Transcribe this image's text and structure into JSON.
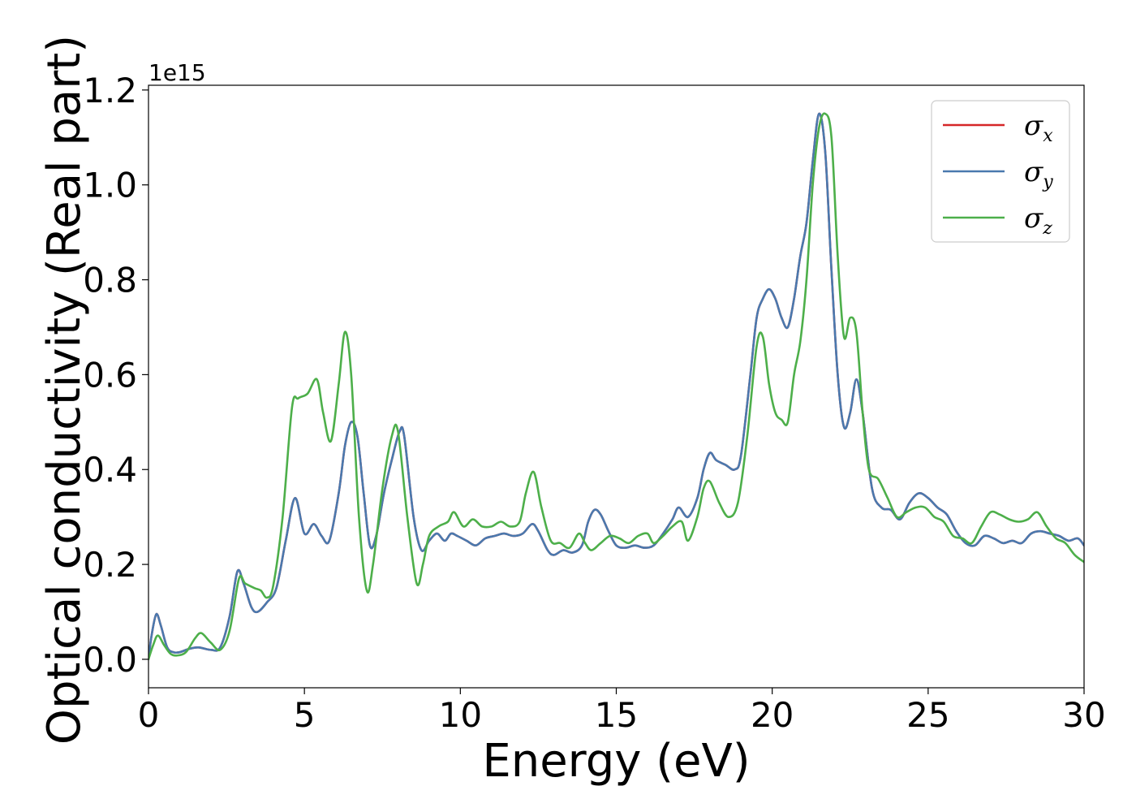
{
  "chart_data": {
    "type": "line",
    "xlabel": "Energy (eV)",
    "ylabel": "Optical conductivity (Real part)",
    "y_offset_label": "1e15",
    "y_multiplier": 1000000000000000.0,
    "xlim": [
      0,
      30
    ],
    "ylim": [
      -0.06,
      1.21
    ],
    "x_ticks": [
      0,
      5,
      10,
      15,
      20,
      25,
      30
    ],
    "x_tick_labels": [
      "0",
      "5",
      "10",
      "15",
      "20",
      "25",
      "30"
    ],
    "y_ticks": [
      0.0,
      0.2,
      0.4,
      0.6,
      0.8,
      1.0,
      1.2
    ],
    "y_tick_labels": [
      "0.0",
      "0.2",
      "0.4",
      "0.6",
      "0.8",
      "1.0",
      "1.2"
    ],
    "grid": false,
    "legend_position": "top-right",
    "series": [
      {
        "name": "σx",
        "legend_symbol": "σ",
        "legend_subscript": "x",
        "color": "#d62728",
        "x": [
          0,
          0.1,
          0.25,
          0.4,
          0.6,
          0.8,
          1.0,
          1.3,
          1.6,
          2.0,
          2.3,
          2.6,
          2.85,
          3.05,
          3.3,
          3.5,
          3.8,
          4.1,
          4.4,
          4.7,
          5.0,
          5.3,
          5.55,
          5.8,
          6.1,
          6.3,
          6.5,
          6.7,
          6.9,
          7.1,
          7.3,
          7.55,
          7.8,
          8.05,
          8.2,
          8.5,
          8.75,
          9.0,
          9.25,
          9.5,
          9.7,
          9.9,
          10.2,
          10.5,
          10.8,
          11.1,
          11.4,
          11.7,
          12.0,
          12.3,
          12.5,
          12.8,
          13.0,
          13.3,
          13.6,
          13.9,
          14.1,
          14.3,
          14.5,
          14.75,
          15.0,
          15.3,
          15.6,
          15.9,
          16.2,
          16.5,
          16.8,
          17.0,
          17.3,
          17.6,
          17.8,
          18.0,
          18.2,
          18.5,
          18.8,
          19.0,
          19.3,
          19.5,
          19.7,
          19.9,
          20.1,
          20.3,
          20.5,
          20.7,
          20.9,
          21.1,
          21.3,
          21.5,
          21.7,
          21.9,
          22.1,
          22.3,
          22.5,
          22.7,
          22.9,
          23.2,
          23.5,
          23.8,
          24.1,
          24.4,
          24.7,
          25.0,
          25.3,
          25.6,
          25.9,
          26.2,
          26.5,
          26.8,
          27.1,
          27.4,
          27.7,
          28.0,
          28.3,
          28.6,
          28.9,
          29.2,
          29.5,
          29.8,
          30
        ],
        "y": [
          0.0,
          0.05,
          0.095,
          0.07,
          0.025,
          0.015,
          0.015,
          0.022,
          0.025,
          0.02,
          0.025,
          0.09,
          0.185,
          0.16,
          0.11,
          0.1,
          0.12,
          0.15,
          0.25,
          0.34,
          0.265,
          0.285,
          0.26,
          0.25,
          0.35,
          0.45,
          0.5,
          0.47,
          0.35,
          0.24,
          0.26,
          0.35,
          0.42,
          0.48,
          0.47,
          0.3,
          0.23,
          0.25,
          0.265,
          0.25,
          0.265,
          0.26,
          0.25,
          0.24,
          0.255,
          0.26,
          0.265,
          0.26,
          0.265,
          0.285,
          0.27,
          0.23,
          0.22,
          0.23,
          0.225,
          0.24,
          0.29,
          0.315,
          0.305,
          0.27,
          0.24,
          0.235,
          0.24,
          0.235,
          0.24,
          0.265,
          0.295,
          0.32,
          0.3,
          0.34,
          0.4,
          0.435,
          0.42,
          0.41,
          0.4,
          0.43,
          0.6,
          0.72,
          0.76,
          0.78,
          0.76,
          0.72,
          0.7,
          0.76,
          0.85,
          0.92,
          1.05,
          1.15,
          1.07,
          0.82,
          0.6,
          0.49,
          0.52,
          0.59,
          0.52,
          0.36,
          0.32,
          0.315,
          0.295,
          0.33,
          0.35,
          0.34,
          0.32,
          0.305,
          0.27,
          0.245,
          0.24,
          0.26,
          0.255,
          0.245,
          0.25,
          0.245,
          0.265,
          0.27,
          0.265,
          0.26,
          0.25,
          0.255,
          0.24
        ]
      },
      {
        "name": "σy",
        "legend_symbol": "σ",
        "legend_subscript": "y",
        "color": "#4a79ae",
        "x": [
          0,
          0.1,
          0.25,
          0.4,
          0.6,
          0.8,
          1.0,
          1.3,
          1.6,
          2.0,
          2.3,
          2.6,
          2.85,
          3.05,
          3.3,
          3.5,
          3.8,
          4.1,
          4.4,
          4.7,
          5.0,
          5.3,
          5.55,
          5.8,
          6.1,
          6.3,
          6.5,
          6.7,
          6.9,
          7.1,
          7.3,
          7.55,
          7.8,
          8.05,
          8.2,
          8.5,
          8.75,
          9.0,
          9.25,
          9.5,
          9.7,
          9.9,
          10.2,
          10.5,
          10.8,
          11.1,
          11.4,
          11.7,
          12.0,
          12.3,
          12.5,
          12.8,
          13.0,
          13.3,
          13.6,
          13.9,
          14.1,
          14.3,
          14.5,
          14.75,
          15.0,
          15.3,
          15.6,
          15.9,
          16.2,
          16.5,
          16.8,
          17.0,
          17.3,
          17.6,
          17.8,
          18.0,
          18.2,
          18.5,
          18.8,
          19.0,
          19.3,
          19.5,
          19.7,
          19.9,
          20.1,
          20.3,
          20.5,
          20.7,
          20.9,
          21.1,
          21.3,
          21.5,
          21.7,
          21.9,
          22.1,
          22.3,
          22.5,
          22.7,
          22.9,
          23.2,
          23.5,
          23.8,
          24.1,
          24.4,
          24.7,
          25.0,
          25.3,
          25.6,
          25.9,
          26.2,
          26.5,
          26.8,
          27.1,
          27.4,
          27.7,
          28.0,
          28.3,
          28.6,
          28.9,
          29.2,
          29.5,
          29.8,
          30
        ],
        "y": [
          0.0,
          0.05,
          0.095,
          0.07,
          0.025,
          0.015,
          0.015,
          0.022,
          0.025,
          0.02,
          0.025,
          0.09,
          0.185,
          0.16,
          0.11,
          0.1,
          0.12,
          0.15,
          0.25,
          0.34,
          0.265,
          0.285,
          0.26,
          0.25,
          0.35,
          0.45,
          0.5,
          0.47,
          0.35,
          0.24,
          0.26,
          0.35,
          0.42,
          0.48,
          0.47,
          0.3,
          0.23,
          0.25,
          0.265,
          0.25,
          0.265,
          0.26,
          0.25,
          0.24,
          0.255,
          0.26,
          0.265,
          0.26,
          0.265,
          0.285,
          0.27,
          0.23,
          0.22,
          0.23,
          0.225,
          0.24,
          0.29,
          0.315,
          0.305,
          0.27,
          0.24,
          0.235,
          0.24,
          0.235,
          0.24,
          0.265,
          0.295,
          0.32,
          0.3,
          0.34,
          0.4,
          0.435,
          0.42,
          0.41,
          0.4,
          0.43,
          0.6,
          0.72,
          0.76,
          0.78,
          0.76,
          0.72,
          0.7,
          0.76,
          0.85,
          0.92,
          1.05,
          1.15,
          1.07,
          0.82,
          0.6,
          0.49,
          0.52,
          0.59,
          0.52,
          0.36,
          0.32,
          0.315,
          0.295,
          0.33,
          0.35,
          0.34,
          0.32,
          0.305,
          0.27,
          0.245,
          0.24,
          0.26,
          0.255,
          0.245,
          0.25,
          0.245,
          0.265,
          0.27,
          0.265,
          0.26,
          0.25,
          0.255,
          0.24
        ]
      },
      {
        "name": "σz",
        "legend_symbol": "σ",
        "legend_subscript": "z",
        "color": "#4daf4a",
        "x": [
          0,
          0.15,
          0.3,
          0.5,
          0.7,
          0.9,
          1.2,
          1.5,
          1.7,
          2.0,
          2.3,
          2.6,
          2.9,
          3.1,
          3.4,
          3.6,
          3.8,
          4.0,
          4.3,
          4.6,
          4.8,
          5.1,
          5.4,
          5.6,
          5.85,
          6.1,
          6.3,
          6.5,
          6.75,
          7.0,
          7.2,
          7.5,
          7.8,
          8.0,
          8.3,
          8.6,
          8.8,
          9.0,
          9.3,
          9.6,
          9.8,
          10.1,
          10.4,
          10.7,
          11.0,
          11.3,
          11.6,
          11.9,
          12.1,
          12.35,
          12.6,
          12.9,
          13.2,
          13.5,
          13.8,
          14.0,
          14.2,
          14.5,
          14.8,
          15.1,
          15.4,
          15.7,
          16.0,
          16.2,
          16.5,
          16.8,
          17.1,
          17.3,
          17.6,
          17.8,
          18.0,
          18.3,
          18.6,
          18.9,
          19.2,
          19.5,
          19.7,
          19.9,
          20.1,
          20.3,
          20.5,
          20.7,
          20.9,
          21.1,
          21.3,
          21.5,
          21.7,
          21.9,
          22.1,
          22.3,
          22.5,
          22.7,
          22.9,
          23.1,
          23.4,
          23.7,
          24.0,
          24.3,
          24.6,
          24.9,
          25.2,
          25.5,
          25.8,
          26.1,
          26.4,
          26.7,
          27.0,
          27.3,
          27.6,
          27.9,
          28.2,
          28.5,
          28.8,
          29.1,
          29.4,
          29.7,
          30
        ],
        "y": [
          0.0,
          0.03,
          0.05,
          0.03,
          0.012,
          0.008,
          0.015,
          0.045,
          0.055,
          0.035,
          0.02,
          0.06,
          0.17,
          0.16,
          0.15,
          0.145,
          0.13,
          0.155,
          0.3,
          0.53,
          0.55,
          0.56,
          0.59,
          0.52,
          0.46,
          0.58,
          0.69,
          0.6,
          0.3,
          0.145,
          0.2,
          0.36,
          0.47,
          0.48,
          0.3,
          0.16,
          0.2,
          0.26,
          0.28,
          0.29,
          0.31,
          0.28,
          0.295,
          0.28,
          0.28,
          0.29,
          0.28,
          0.29,
          0.35,
          0.395,
          0.32,
          0.25,
          0.245,
          0.235,
          0.265,
          0.245,
          0.23,
          0.245,
          0.26,
          0.255,
          0.245,
          0.26,
          0.265,
          0.245,
          0.26,
          0.28,
          0.29,
          0.25,
          0.3,
          0.36,
          0.375,
          0.33,
          0.3,
          0.33,
          0.47,
          0.66,
          0.68,
          0.58,
          0.52,
          0.505,
          0.5,
          0.6,
          0.67,
          0.8,
          1.0,
          1.12,
          1.15,
          1.1,
          0.85,
          0.68,
          0.72,
          0.69,
          0.52,
          0.4,
          0.38,
          0.34,
          0.3,
          0.31,
          0.32,
          0.32,
          0.3,
          0.29,
          0.26,
          0.255,
          0.245,
          0.28,
          0.31,
          0.305,
          0.295,
          0.29,
          0.295,
          0.31,
          0.28,
          0.255,
          0.245,
          0.22,
          0.205
        ]
      }
    ]
  }
}
